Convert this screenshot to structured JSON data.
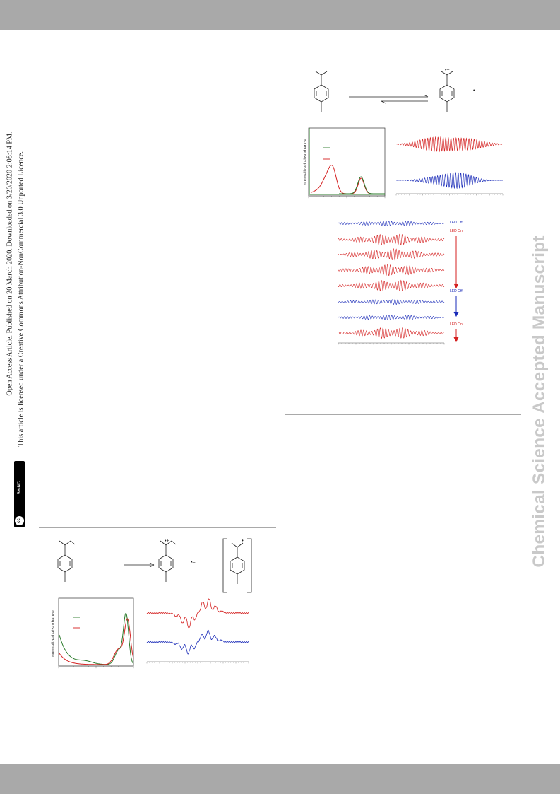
{
  "page": {
    "journal_watermark": "Chemical Science Accepted Manuscript",
    "sidebar_line1": "Open Access Article. Published on 20 March 2020. Downloaded on 3/20/2020 2:08:14 PM.",
    "sidebar_line2": "This article is licensed under a Creative Commons Attribution-NonCommercial 3.0 Unported Licence.",
    "license_badge": "BY-NC",
    "license_badge_cc": "cc"
  },
  "figures": {
    "uv_axis_label": "normalized absorbance",
    "radical_cation_charge": "•+",
    "anion_charge": "•–",
    "radical_dot": "•"
  },
  "led_sequence": {
    "labels": [
      "LED Off",
      "LED On",
      "LED Off",
      "LED On"
    ],
    "trace_colors": [
      "blue",
      "red",
      "red",
      "red",
      "red",
      "blue",
      "blue",
      "red"
    ]
  },
  "colors": {
    "red": "#d42020",
    "blue": "#1a2bb8",
    "green": "#2a7a2a",
    "band": "#a9a9a9",
    "watermark": "#c9c9c9"
  }
}
